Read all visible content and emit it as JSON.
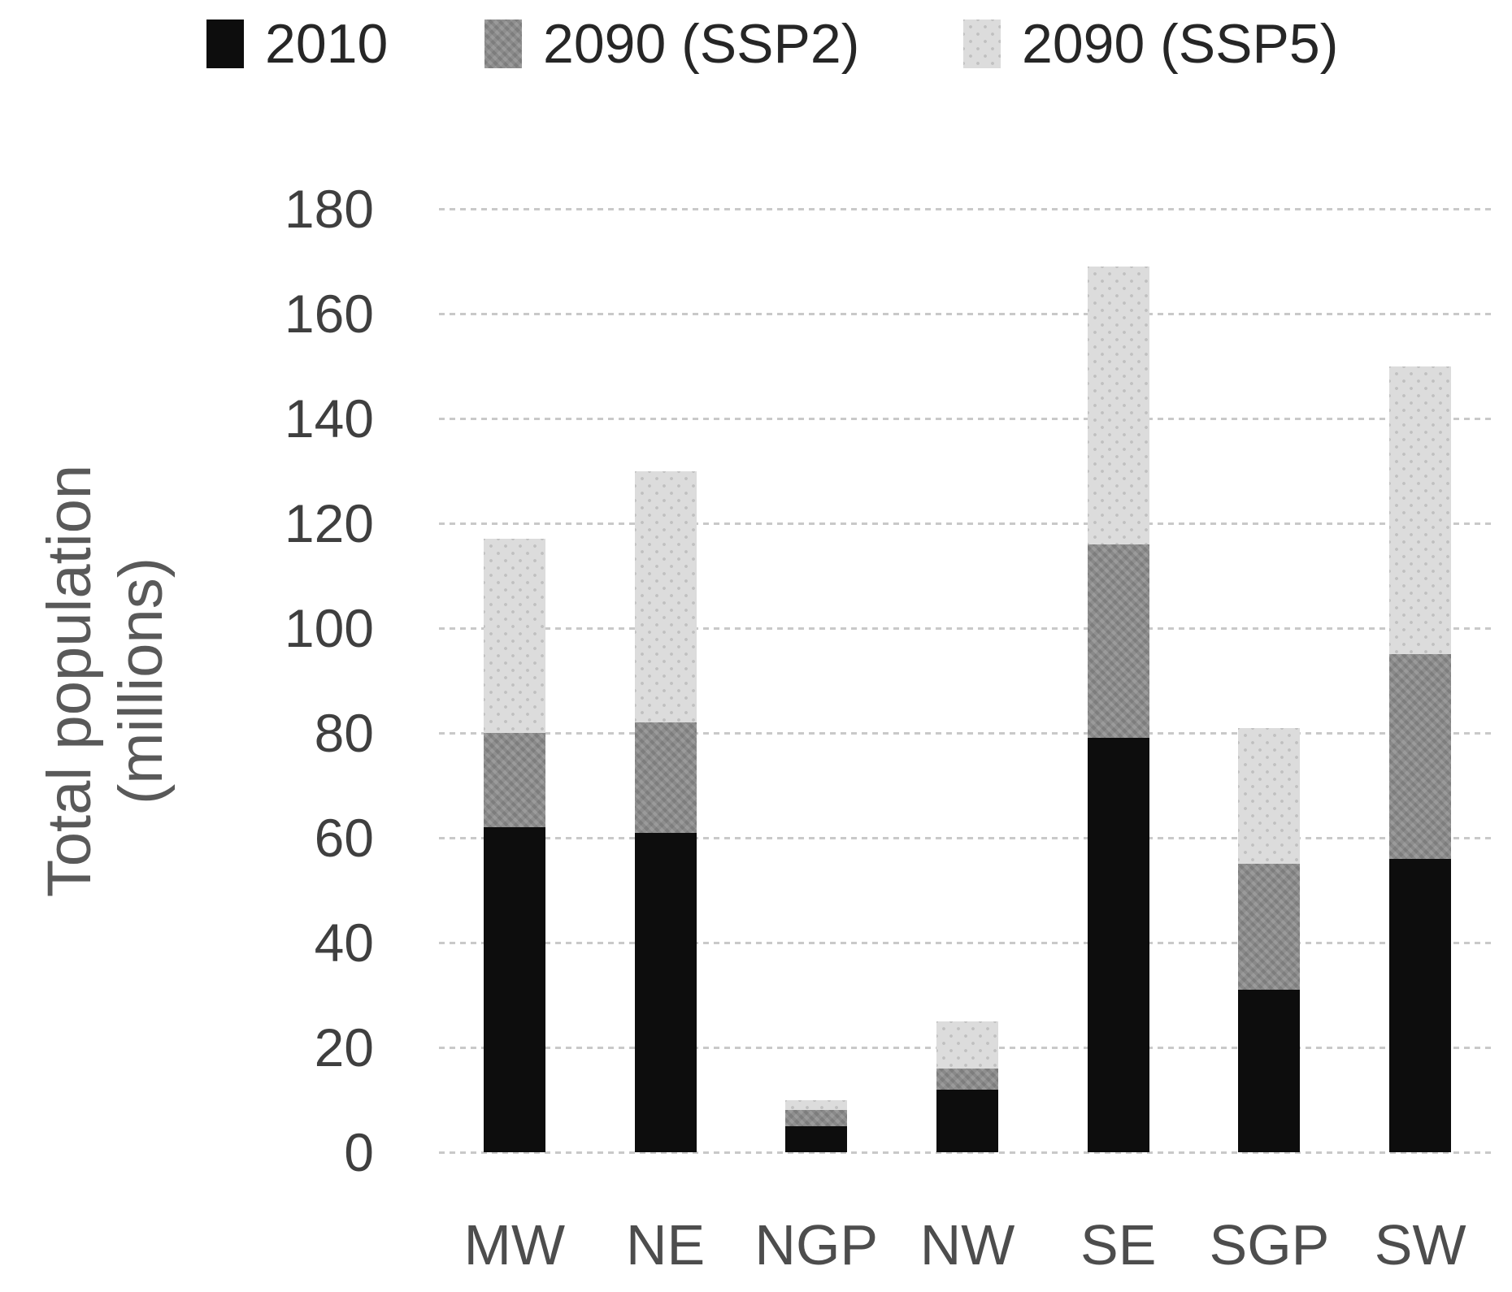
{
  "legend": [
    {
      "label": "2010",
      "color": "#0d0d0d",
      "pattern": "solid-black"
    },
    {
      "label": "2090 (SSP2)",
      "color": "#8d8d8d",
      "pattern": "chevron-gray"
    },
    {
      "label": "2090 (SSP5)",
      "color": "#dcdcdc",
      "pattern": "dotted-light-gray"
    }
  ],
  "chart_data": {
    "type": "bar",
    "subtype": "layered-overlay (scenario totals drawn in front of each other)",
    "categories": [
      "MW",
      "NE",
      "NGP",
      "NW",
      "SE",
      "SGP",
      "SW"
    ],
    "series": [
      {
        "name": "2010",
        "values": [
          62,
          61,
          5,
          12,
          79,
          31,
          56
        ]
      },
      {
        "name": "2090 (SSP2)",
        "values": [
          80,
          82,
          8,
          16,
          116,
          55,
          95
        ]
      },
      {
        "name": "2090 (SSP5)",
        "values": [
          117,
          130,
          10,
          25,
          169,
          81,
          150
        ]
      }
    ],
    "title": "",
    "xlabel": "",
    "ylabel_line1": "Total population",
    "ylabel_line2": "(millions)",
    "yticks": [
      0,
      20,
      40,
      60,
      80,
      100,
      120,
      140,
      160,
      180
    ],
    "ylim": [
      0,
      180
    ],
    "grid": true,
    "gridline_color": "#c9c9c9",
    "legend_position": "top"
  }
}
